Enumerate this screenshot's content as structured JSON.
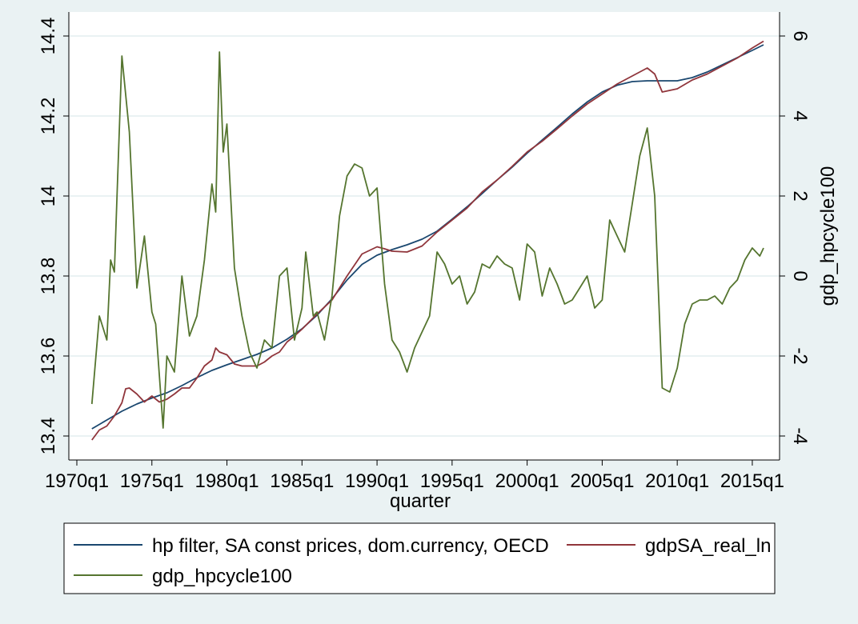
{
  "chart_data": {
    "type": "line",
    "xlabel": "quarter",
    "ylabel_left": "",
    "ylabel_right": "gdp_hpcycle100",
    "x_ticks": [
      "1970q1",
      "1975q1",
      "1980q1",
      "1985q1",
      "1990q1",
      "1995q1",
      "2000q1",
      "2005q1",
      "2010q1",
      "2015q1"
    ],
    "y_left_ticks": [
      "13.4",
      "13.6",
      "13.8",
      "14",
      "14.2",
      "14.4"
    ],
    "y_right_ticks": [
      "-4",
      "-2",
      "0",
      "2",
      "4",
      "6"
    ],
    "y_left_range": [
      13.4,
      14.4
    ],
    "y_right_range": [
      -4,
      6
    ],
    "x_range": [
      1970.0,
      2015.75
    ],
    "grid": true,
    "legend_position": "bottom",
    "series": [
      {
        "name": "hp filter, SA const prices, dom.currency, OECD",
        "axis": "left",
        "color": "#1a476f",
        "points": [
          [
            1971.0,
            13.418
          ],
          [
            1972.0,
            13.44
          ],
          [
            1973.0,
            13.462
          ],
          [
            1974.0,
            13.48
          ],
          [
            1975.0,
            13.495
          ],
          [
            1976.0,
            13.508
          ],
          [
            1977.0,
            13.526
          ],
          [
            1978.0,
            13.546
          ],
          [
            1979.0,
            13.564
          ],
          [
            1980.0,
            13.578
          ],
          [
            1981.0,
            13.591
          ],
          [
            1982.0,
            13.604
          ],
          [
            1983.0,
            13.62
          ],
          [
            1984.0,
            13.642
          ],
          [
            1985.0,
            13.668
          ],
          [
            1986.0,
            13.702
          ],
          [
            1987.0,
            13.743
          ],
          [
            1988.0,
            13.79
          ],
          [
            1989.0,
            13.829
          ],
          [
            1990.0,
            13.852
          ],
          [
            1991.0,
            13.866
          ],
          [
            1992.0,
            13.878
          ],
          [
            1993.0,
            13.892
          ],
          [
            1994.0,
            13.912
          ],
          [
            1995.0,
            13.942
          ],
          [
            1996.0,
            13.973
          ],
          [
            1997.0,
            14.006
          ],
          [
            1998.0,
            14.04
          ],
          [
            1999.0,
            14.072
          ],
          [
            2000.0,
            14.107
          ],
          [
            2001.0,
            14.14
          ],
          [
            2002.0,
            14.172
          ],
          [
            2003.0,
            14.205
          ],
          [
            2004.0,
            14.235
          ],
          [
            2005.0,
            14.26
          ],
          [
            2006.0,
            14.277
          ],
          [
            2007.0,
            14.286
          ],
          [
            2008.0,
            14.288
          ],
          [
            2009.0,
            14.288
          ],
          [
            2010.0,
            14.288
          ],
          [
            2011.0,
            14.296
          ],
          [
            2012.0,
            14.31
          ],
          [
            2013.0,
            14.328
          ],
          [
            2014.0,
            14.346
          ],
          [
            2015.0,
            14.364
          ],
          [
            2015.75,
            14.378
          ]
        ]
      },
      {
        "name": "gdpSA_real_ln",
        "axis": "left",
        "color": "#90353b",
        "points": [
          [
            1971.0,
            13.39
          ],
          [
            1971.5,
            13.415
          ],
          [
            1972.0,
            13.425
          ],
          [
            1972.5,
            13.45
          ],
          [
            1973.0,
            13.483
          ],
          [
            1973.25,
            13.518
          ],
          [
            1973.5,
            13.52
          ],
          [
            1974.0,
            13.505
          ],
          [
            1974.5,
            13.485
          ],
          [
            1975.0,
            13.5
          ],
          [
            1975.5,
            13.485
          ],
          [
            1976.0,
            13.492
          ],
          [
            1976.5,
            13.505
          ],
          [
            1977.0,
            13.52
          ],
          [
            1977.5,
            13.52
          ],
          [
            1978.0,
            13.545
          ],
          [
            1978.5,
            13.575
          ],
          [
            1979.0,
            13.59
          ],
          [
            1979.25,
            13.62
          ],
          [
            1979.5,
            13.61
          ],
          [
            1980.0,
            13.603
          ],
          [
            1980.5,
            13.58
          ],
          [
            1981.0,
            13.575
          ],
          [
            1981.5,
            13.575
          ],
          [
            1982.0,
            13.575
          ],
          [
            1982.5,
            13.585
          ],
          [
            1983.0,
            13.6
          ],
          [
            1983.5,
            13.61
          ],
          [
            1984.0,
            13.635
          ],
          [
            1984.5,
            13.65
          ],
          [
            1985.0,
            13.667
          ],
          [
            1986.0,
            13.705
          ],
          [
            1987.0,
            13.74
          ],
          [
            1988.0,
            13.8
          ],
          [
            1989.0,
            13.855
          ],
          [
            1990.0,
            13.873
          ],
          [
            1990.5,
            13.868
          ],
          [
            1991.0,
            13.862
          ],
          [
            1992.0,
            13.86
          ],
          [
            1993.0,
            13.875
          ],
          [
            1994.0,
            13.91
          ],
          [
            1995.0,
            13.94
          ],
          [
            1996.0,
            13.97
          ],
          [
            1997.0,
            14.01
          ],
          [
            1998.0,
            14.04
          ],
          [
            1999.0,
            14.074
          ],
          [
            2000.0,
            14.11
          ],
          [
            2001.0,
            14.137
          ],
          [
            2002.0,
            14.168
          ],
          [
            2003.0,
            14.2
          ],
          [
            2004.0,
            14.23
          ],
          [
            2005.0,
            14.255
          ],
          [
            2006.0,
            14.28
          ],
          [
            2007.0,
            14.3
          ],
          [
            2008.0,
            14.32
          ],
          [
            2008.5,
            14.305
          ],
          [
            2009.0,
            14.26
          ],
          [
            2010.0,
            14.268
          ],
          [
            2011.0,
            14.29
          ],
          [
            2012.0,
            14.305
          ],
          [
            2013.0,
            14.325
          ],
          [
            2014.0,
            14.345
          ],
          [
            2015.0,
            14.37
          ],
          [
            2015.75,
            14.387
          ]
        ]
      },
      {
        "name": "gdp_hpcycle100",
        "axis": "right",
        "color": "#55752f",
        "points": [
          [
            1971.0,
            -3.2
          ],
          [
            1971.5,
            -1.0
          ],
          [
            1972.0,
            -1.6
          ],
          [
            1972.25,
            0.4
          ],
          [
            1972.5,
            0.1
          ],
          [
            1973.0,
            5.5
          ],
          [
            1973.5,
            3.6
          ],
          [
            1974.0,
            -0.3
          ],
          [
            1974.5,
            1.0
          ],
          [
            1975.0,
            -0.9
          ],
          [
            1975.25,
            -1.2
          ],
          [
            1975.75,
            -3.8
          ],
          [
            1976.0,
            -2.0
          ],
          [
            1976.5,
            -2.4
          ],
          [
            1977.0,
            0.0
          ],
          [
            1977.5,
            -1.5
          ],
          [
            1978.0,
            -1.0
          ],
          [
            1978.5,
            0.4
          ],
          [
            1979.0,
            2.3
          ],
          [
            1979.25,
            1.6
          ],
          [
            1979.5,
            5.6
          ],
          [
            1979.75,
            3.1
          ],
          [
            1980.0,
            3.8
          ],
          [
            1980.5,
            0.2
          ],
          [
            1981.0,
            -1.0
          ],
          [
            1981.5,
            -1.9
          ],
          [
            1982.0,
            -2.3
          ],
          [
            1982.5,
            -1.6
          ],
          [
            1983.0,
            -1.8
          ],
          [
            1983.5,
            0.0
          ],
          [
            1984.0,
            0.2
          ],
          [
            1984.5,
            -1.6
          ],
          [
            1985.0,
            -0.8
          ],
          [
            1985.25,
            0.6
          ],
          [
            1985.75,
            -1.0
          ],
          [
            1986.0,
            -0.9
          ],
          [
            1986.5,
            -1.6
          ],
          [
            1987.0,
            -0.5
          ],
          [
            1987.5,
            1.5
          ],
          [
            1988.0,
            2.5
          ],
          [
            1988.5,
            2.8
          ],
          [
            1989.0,
            2.7
          ],
          [
            1989.5,
            2.0
          ],
          [
            1990.0,
            2.2
          ],
          [
            1990.5,
            -0.2
          ],
          [
            1991.0,
            -1.6
          ],
          [
            1991.5,
            -1.9
          ],
          [
            1992.0,
            -2.4
          ],
          [
            1992.5,
            -1.8
          ],
          [
            1993.0,
            -1.4
          ],
          [
            1993.5,
            -1.0
          ],
          [
            1994.0,
            0.6
          ],
          [
            1994.5,
            0.3
          ],
          [
            1995.0,
            -0.2
          ],
          [
            1995.5,
            0.0
          ],
          [
            1996.0,
            -0.7
          ],
          [
            1996.5,
            -0.4
          ],
          [
            1997.0,
            0.3
          ],
          [
            1997.5,
            0.2
          ],
          [
            1998.0,
            0.5
          ],
          [
            1998.5,
            0.3
          ],
          [
            1999.0,
            0.2
          ],
          [
            1999.5,
            -0.6
          ],
          [
            2000.0,
            0.8
          ],
          [
            2000.5,
            0.6
          ],
          [
            2001.0,
            -0.5
          ],
          [
            2001.5,
            0.2
          ],
          [
            2002.0,
            -0.2
          ],
          [
            2002.5,
            -0.7
          ],
          [
            2003.0,
            -0.6
          ],
          [
            2003.5,
            -0.3
          ],
          [
            2004.0,
            0.0
          ],
          [
            2004.5,
            -0.8
          ],
          [
            2005.0,
            -0.6
          ],
          [
            2005.5,
            1.4
          ],
          [
            2006.0,
            1.0
          ],
          [
            2006.5,
            0.6
          ],
          [
            2007.0,
            1.8
          ],
          [
            2007.5,
            3.0
          ],
          [
            2008.0,
            3.7
          ],
          [
            2008.5,
            2.0
          ],
          [
            2009.0,
            -2.8
          ],
          [
            2009.5,
            -2.9
          ],
          [
            2010.0,
            -2.3
          ],
          [
            2010.5,
            -1.2
          ],
          [
            2011.0,
            -0.7
          ],
          [
            2011.5,
            -0.6
          ],
          [
            2012.0,
            -0.6
          ],
          [
            2012.5,
            -0.5
          ],
          [
            2013.0,
            -0.7
          ],
          [
            2013.5,
            -0.3
          ],
          [
            2014.0,
            -0.1
          ],
          [
            2014.5,
            0.4
          ],
          [
            2015.0,
            0.7
          ],
          [
            2015.5,
            0.5
          ],
          [
            2015.75,
            0.7
          ]
        ]
      }
    ]
  }
}
